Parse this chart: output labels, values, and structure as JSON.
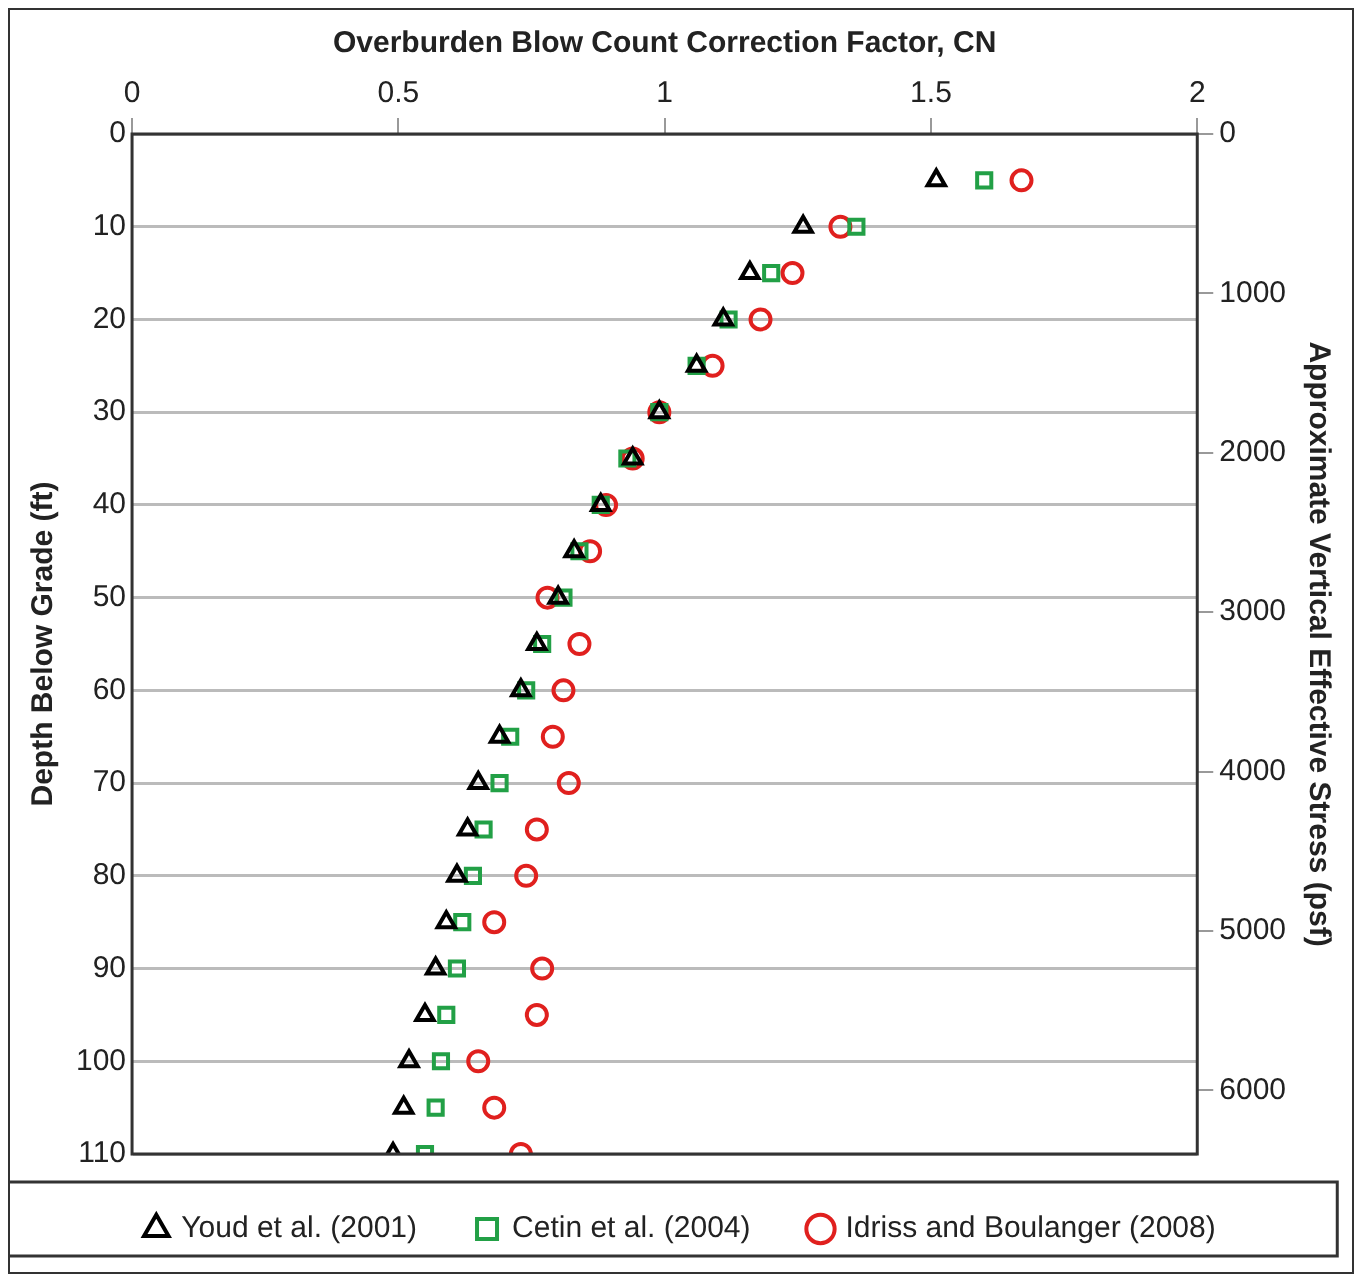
{
  "chart_data": {
    "type": "scatter",
    "xlabel": "Overburden Blow Count Correction Factor, CN",
    "ylabel": "Depth Below Grade (ft)",
    "y2label": "Approximate Vertical Effective Stress (psf)",
    "xlim": [
      0,
      2
    ],
    "xticks": [
      0,
      0.5,
      1,
      1.5,
      2
    ],
    "ylim": [
      110,
      0
    ],
    "yticks": [
      0,
      10,
      20,
      30,
      40,
      50,
      60,
      70,
      80,
      90,
      100,
      110
    ],
    "y2lim": [
      6400,
      0
    ],
    "y2ticks": [
      0,
      1000,
      2000,
      3000,
      4000,
      5000,
      6000
    ],
    "grid": "y",
    "legend": "bottom",
    "series": [
      {
        "name": "Youd et al. (2001)",
        "color": "#000000",
        "marker": "triangle",
        "x": [
          1.51,
          1.26,
          1.16,
          1.11,
          1.06,
          0.99,
          0.94,
          0.88,
          0.83,
          0.8,
          0.76,
          0.73,
          0.69,
          0.65,
          0.63,
          0.61,
          0.59,
          0.57,
          0.55,
          0.52,
          0.51,
          0.49
        ],
        "values": [
          5,
          10,
          15,
          20,
          25,
          30,
          35,
          40,
          45,
          50,
          55,
          60,
          65,
          70,
          75,
          80,
          85,
          90,
          95,
          100,
          105,
          110
        ]
      },
      {
        "name": "Cetin et al. (2004)",
        "color": "#22a046",
        "marker": "square",
        "x": [
          1.6,
          1.36,
          1.2,
          1.12,
          1.06,
          0.99,
          0.93,
          0.88,
          0.84,
          0.81,
          0.77,
          0.74,
          0.71,
          0.69,
          0.66,
          0.64,
          0.62,
          0.61,
          0.59,
          0.58,
          0.57,
          0.55
        ],
        "values": [
          5,
          10,
          15,
          20,
          25,
          30,
          35,
          40,
          45,
          50,
          55,
          60,
          65,
          70,
          75,
          80,
          85,
          90,
          95,
          100,
          105,
          110
        ]
      },
      {
        "name": "Idriss and Boulanger (2008)",
        "color": "#e0201e",
        "marker": "circle",
        "x": [
          1.67,
          1.33,
          1.24,
          1.18,
          1.09,
          0.99,
          0.94,
          0.89,
          0.86,
          0.78,
          0.84,
          0.81,
          0.79,
          0.82,
          0.76,
          0.74,
          0.68,
          0.77,
          0.76,
          0.65,
          0.68,
          0.73
        ],
        "values": [
          5,
          10,
          15,
          20,
          25,
          30,
          35,
          40,
          45,
          50,
          55,
          60,
          65,
          70,
          75,
          80,
          85,
          90,
          95,
          100,
          105,
          110
        ]
      }
    ]
  }
}
